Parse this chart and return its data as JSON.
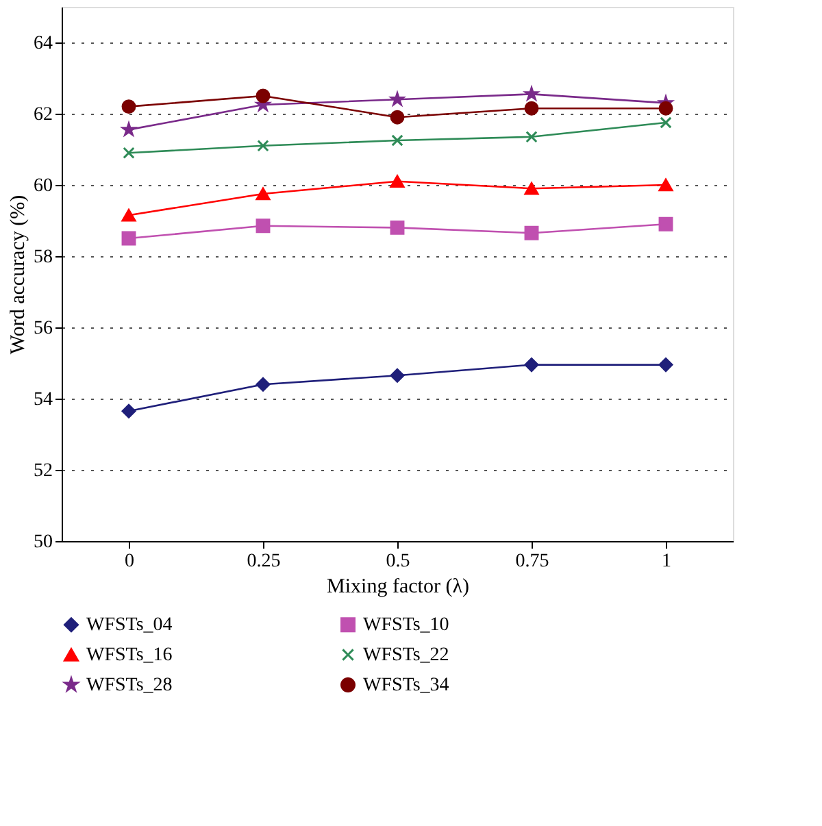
{
  "chart_data": {
    "type": "line",
    "xlabel": "Mixing factor (λ)",
    "ylabel": "Word accuracy (%)",
    "categories": [
      "0",
      "0.25",
      "0.5",
      "0.75",
      "1"
    ],
    "ylim": [
      50,
      65
    ],
    "yticks": [
      50,
      52,
      54,
      56,
      58,
      60,
      62,
      64
    ],
    "grid": "y",
    "legend": "bottom",
    "line_style": "solid",
    "series": [
      {
        "name": "WFSTs_04",
        "color": "#1f1f7a",
        "marker": "diamond",
        "values": [
          53.65,
          54.4,
          54.65,
          54.95,
          54.95
        ]
      },
      {
        "name": "WFSTs_10",
        "color": "#c050b0",
        "marker": "square",
        "values": [
          58.5,
          58.85,
          58.8,
          58.65,
          58.9
        ]
      },
      {
        "name": "WFSTs_16",
        "color": "#ff0000",
        "marker": "triangle",
        "values": [
          59.15,
          59.75,
          60.1,
          59.9,
          60.0
        ]
      },
      {
        "name": "WFSTs_22",
        "color": "#2e8b57",
        "marker": "cross",
        "values": [
          60.9,
          61.1,
          61.25,
          61.35,
          61.75
        ]
      },
      {
        "name": "WFSTs_28",
        "color": "#7a2a8a",
        "marker": "star",
        "values": [
          61.55,
          62.25,
          62.4,
          62.55,
          62.3
        ]
      },
      {
        "name": "WFSTs_34",
        "color": "#7b0000",
        "marker": "circle",
        "values": [
          62.2,
          62.5,
          61.9,
          62.15,
          62.15
        ]
      }
    ]
  }
}
